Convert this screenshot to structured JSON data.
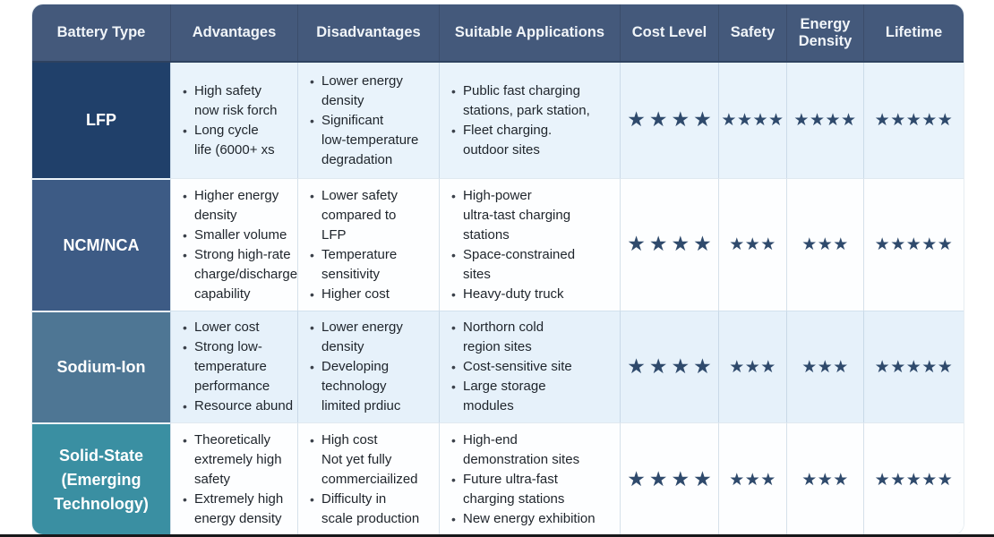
{
  "chart_data": {
    "type": "table",
    "columns": [
      "Battery Type",
      "Advantages",
      "Disadvantages",
      "Suitable Applications",
      "Cost Level",
      "Safety",
      "Energy Density",
      "Lifetime"
    ],
    "rating_max": 5,
    "rows": [
      {
        "battery_type": "LFP",
        "label_bg": "#20406a",
        "row_bg": "#e9f3fb",
        "advantages": [
          "High safety\nnow risk forch",
          "Long cycle\nlife (6000+ xs"
        ],
        "disadvantages": [
          "Lower energy\ndensity",
          "Significant\nlow-temperature\ndegradation"
        ],
        "applications": [
          "Public fast charging\nstations, park station,",
          "Fleet charging.\noutdoor sites"
        ],
        "ratings": {
          "cost_level": 4,
          "safety": 4,
          "energy_density": 4,
          "lifetime": 5
        }
      },
      {
        "battery_type": "NCM/NCA",
        "label_bg": "#3d5b85",
        "row_bg": "#fdfeff",
        "advantages": [
          "Higher energy\ndensity",
          "Smaller volume",
          "Strong high-rate\ncharge/discharge\ncapability"
        ],
        "disadvantages": [
          "Lower safety\ncompared to\nLFP",
          "Temperature\nsensitivity",
          "Higher cost"
        ],
        "applications": [
          "High-power\nultra-tast charging\nstations",
          "Space-constrained\nsites",
          "Heavy-duty truck"
        ],
        "ratings": {
          "cost_level": 4,
          "safety": 3,
          "energy_density": 3,
          "lifetime": 5
        }
      },
      {
        "battery_type": "Sodium-Ion",
        "label_bg": "#4e7694",
        "row_bg": "#e6f1fa",
        "advantages": [
          "Lower cost",
          "Strong low-\ntemperature\nperformance",
          "Resource abund"
        ],
        "disadvantages": [
          "Lower energy\ndensity",
          "Developing\ntechnology\nlimited prdiuc"
        ],
        "applications": [
          "Northorn cold\nregion sites",
          "Cost-sensitive site",
          "Large storage\nmodules"
        ],
        "ratings": {
          "cost_level": 4,
          "safety": 3,
          "energy_density": 3,
          "lifetime": 5
        }
      },
      {
        "battery_type": "Solid-State\n(Emerging\nTechnology)",
        "label_bg": "#3a8fa2",
        "row_bg": "#fdfeff",
        "advantages": [
          "Theoretically\nextremely high\nsafety",
          "Extremely high\nenergy density"
        ],
        "disadvantages": [
          "High cost\nNot yet fully\ncommerciailized",
          "Difficulty in\nscale production"
        ],
        "applications": [
          "High-end\ndemonstration sites",
          "Future ultra-fast\ncharging stations",
          "New energy exhibition"
        ],
        "ratings": {
          "cost_level": 4,
          "safety": 3,
          "energy_density": 3,
          "lifetime": 5
        }
      }
    ]
  },
  "style": {
    "header_bg": "#44597b",
    "header_text_color": "#f1f5f9",
    "star_color": "#2f4a6c",
    "star_glyph": "★"
  }
}
